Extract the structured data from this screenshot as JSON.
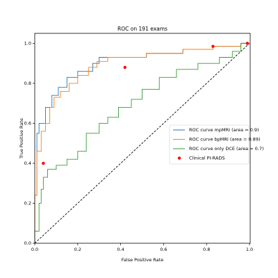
{
  "chart_data": {
    "type": "line",
    "title": "ROC on 191 exams",
    "xlabel": "False Positive Rate",
    "ylabel": "True Positive Rate",
    "xlim": [
      0,
      1.0
    ],
    "ylim": [
      0,
      1.05
    ],
    "xticks": [
      {
        "value": 0,
        "label": "0.0"
      },
      {
        "value": 0.2,
        "label": "0.2"
      },
      {
        "value": 0.4,
        "label": "0.4"
      },
      {
        "value": 0.6,
        "label": "0.6"
      },
      {
        "value": 0.8,
        "label": "0.8"
      },
      {
        "value": 1.0,
        "label": "1.0"
      }
    ],
    "yticks": [
      {
        "value": 0,
        "label": "0.0"
      },
      {
        "value": 0.2,
        "label": "0.2"
      },
      {
        "value": 0.4,
        "label": "0.4"
      },
      {
        "value": 0.6,
        "label": "0.6"
      },
      {
        "value": 0.8,
        "label": "0.8"
      },
      {
        "value": 1.0,
        "label": "1.0"
      }
    ],
    "legend": "center right",
    "series": [
      {
        "name": "ROC curve mpMRI (area = 0.9)",
        "color": "#1f77b4",
        "kind": "line",
        "x": [
          0,
          0,
          0.01,
          0.01,
          0.02,
          0.02,
          0.05,
          0.05,
          0.08,
          0.08,
          0.11,
          0.11,
          0.15,
          0.15,
          0.2,
          0.2,
          0.27,
          0.27,
          0.3,
          0.3,
          0.52,
          0.52,
          0.69,
          0.69,
          0.83,
          0.83,
          0.96,
          0.96,
          1.0
        ],
        "y": [
          0,
          0.24,
          0.24,
          0.55,
          0.55,
          0.6,
          0.6,
          0.68,
          0.68,
          0.74,
          0.74,
          0.78,
          0.78,
          0.83,
          0.83,
          0.86,
          0.86,
          0.9,
          0.9,
          0.93,
          0.93,
          0.95,
          0.95,
          0.97,
          0.97,
          0.985,
          0.985,
          1.0,
          1.0
        ]
      },
      {
        "name": "ROC curve bpMRI (area = 0.89)",
        "color": "#ff7f0e",
        "kind": "line",
        "x": [
          0,
          0,
          0.01,
          0.01,
          0.03,
          0.03,
          0.05,
          0.05,
          0.07,
          0.07,
          0.09,
          0.09,
          0.12,
          0.12,
          0.16,
          0.16,
          0.2,
          0.2,
          0.25,
          0.25,
          0.29,
          0.29,
          0.34,
          0.34,
          0.52,
          0.52,
          0.69,
          0.69,
          0.83,
          0.83,
          0.96,
          0.96,
          1.0
        ],
        "y": [
          0,
          0.24,
          0.24,
          0.46,
          0.46,
          0.56,
          0.56,
          0.6,
          0.6,
          0.68,
          0.68,
          0.73,
          0.73,
          0.76,
          0.76,
          0.8,
          0.8,
          0.84,
          0.84,
          0.88,
          0.88,
          0.91,
          0.91,
          0.93,
          0.93,
          0.95,
          0.95,
          0.97,
          0.97,
          0.985,
          0.985,
          1.0,
          1.0
        ]
      },
      {
        "name": "ROC curve only DCE (area = 0.7)",
        "color": "#2ca02c",
        "kind": "line",
        "x": [
          0,
          0,
          0.02,
          0.02,
          0.03,
          0.03,
          0.04,
          0.04,
          0.06,
          0.06,
          0.1,
          0.1,
          0.15,
          0.15,
          0.2,
          0.2,
          0.24,
          0.24,
          0.3,
          0.3,
          0.34,
          0.34,
          0.39,
          0.39,
          0.45,
          0.45,
          0.5,
          0.5,
          0.58,
          0.58,
          0.66,
          0.66,
          0.76,
          0.76,
          0.86,
          0.86,
          0.92,
          0.92,
          0.96,
          0.96,
          1.0
        ],
        "y": [
          0,
          0.06,
          0.06,
          0.2,
          0.2,
          0.27,
          0.27,
          0.33,
          0.33,
          0.37,
          0.37,
          0.39,
          0.39,
          0.42,
          0.42,
          0.46,
          0.46,
          0.55,
          0.55,
          0.6,
          0.6,
          0.63,
          0.63,
          0.68,
          0.68,
          0.72,
          0.72,
          0.77,
          0.77,
          0.83,
          0.83,
          0.87,
          0.87,
          0.9,
          0.9,
          0.93,
          0.93,
          0.96,
          0.96,
          1.0,
          1.0
        ]
      },
      {
        "name": "Clinical PI-RADS",
        "color": "#ff0000",
        "kind": "scatter",
        "x": [
          0.04,
          0.42,
          0.83,
          0.99
        ],
        "y": [
          0.4,
          0.88,
          0.985,
          1.0
        ]
      }
    ],
    "diagonal": {
      "color": "#000000",
      "style": "dashed",
      "x": [
        0,
        1
      ],
      "y": [
        0,
        1
      ]
    }
  }
}
